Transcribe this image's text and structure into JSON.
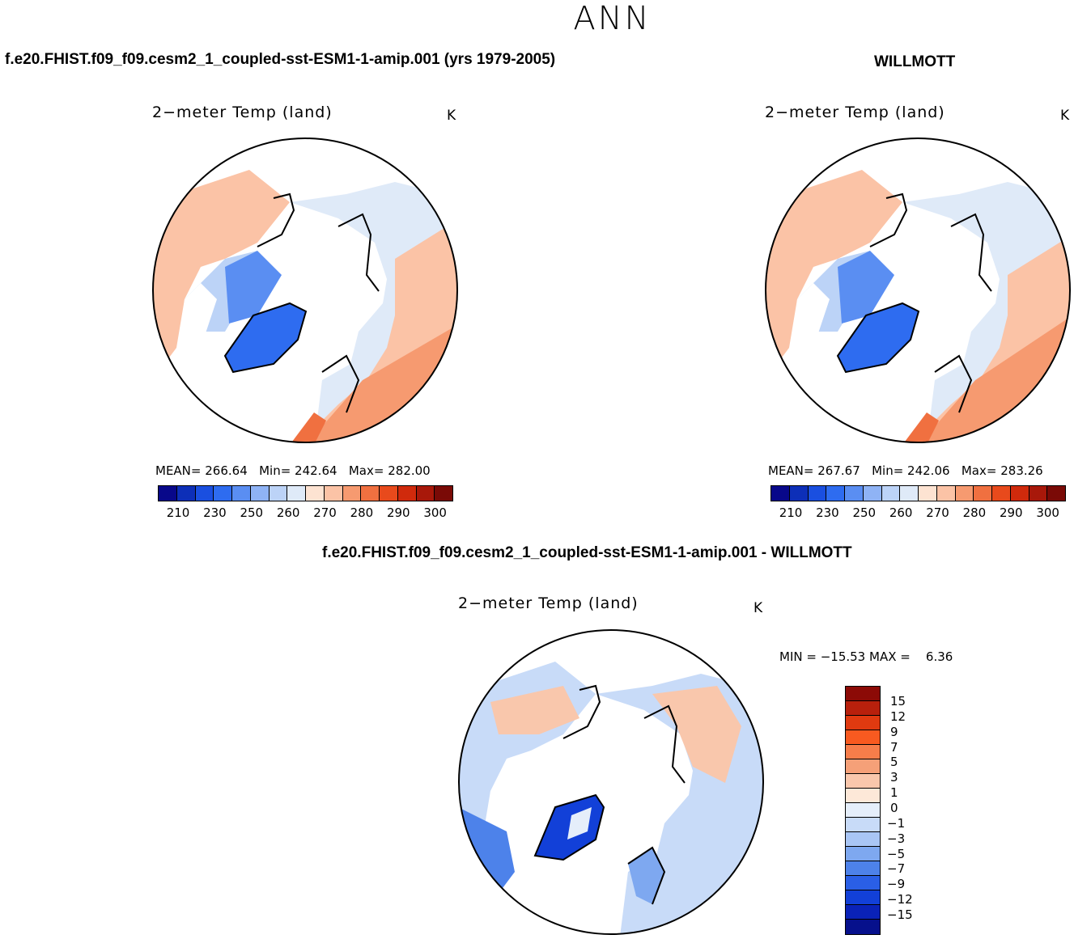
{
  "title": "ANN",
  "top_left": {
    "case_label": "f.e20.FHIST.f09_f09.cesm2_1_coupled-sst-ESM1-1-amip.001 (yrs 1979-2005)",
    "plot_title": "2−meter Temp (land)",
    "units": "K",
    "stats": {
      "mean_label": "MEAN=",
      "mean": "266.64",
      "min_label": "Min=",
      "min": "242.64",
      "max_label": "Max=",
      "max": "282.00"
    }
  },
  "top_right": {
    "case_label": "WILLMOTT",
    "plot_title": "2−meter Temp (land)",
    "units": "K",
    "stats": {
      "mean_label": "MEAN=",
      "mean": "267.67",
      "min_label": "Min=",
      "min": "242.06",
      "max_label": "Max=",
      "max": "283.26"
    }
  },
  "absolute_colorbar": {
    "ticks": [
      "210",
      "230",
      "250",
      "260",
      "270",
      "280",
      "290",
      "300"
    ],
    "colors": [
      "#08088a",
      "#0d2fb8",
      "#1a4fe0",
      "#2e6cf0",
      "#5a8ef2",
      "#8fb3f5",
      "#bcd3f7",
      "#dfeaf8",
      "#fde3d2",
      "#fbc3a6",
      "#f69a70",
      "#f07040",
      "#e84a1c",
      "#d02a0c",
      "#a8180a",
      "#7a0a06"
    ]
  },
  "difference": {
    "case_label": "f.e20.FHIST.f09_f09.cesm2_1_coupled-sst-ESM1-1-amip.001 - WILLMOTT",
    "plot_title": "2−meter Temp (land)",
    "units": "K",
    "minmax": {
      "min_label": "MIN = ",
      "min": "−15.53",
      "max_label": "MAX =",
      "max": "6.36"
    }
  },
  "difference_colorbar": {
    "labels": [
      "15",
      "12",
      "9",
      "7",
      "5",
      "3",
      "1",
      "0",
      "−1",
      "−3",
      "−5",
      "−7",
      "−9",
      "−12",
      "−15"
    ],
    "colors": [
      "#8c0a06",
      "#b8200c",
      "#e03a10",
      "#f85a20",
      "#f67d4a",
      "#f5a078",
      "#f9c7ac",
      "#fde8d8",
      "#e5eefa",
      "#c8dbf8",
      "#a9c6f5",
      "#7ea8f0",
      "#4d82ea",
      "#2a5fe6",
      "#1240d8",
      "#0a22b8",
      "#06108c"
    ]
  }
}
